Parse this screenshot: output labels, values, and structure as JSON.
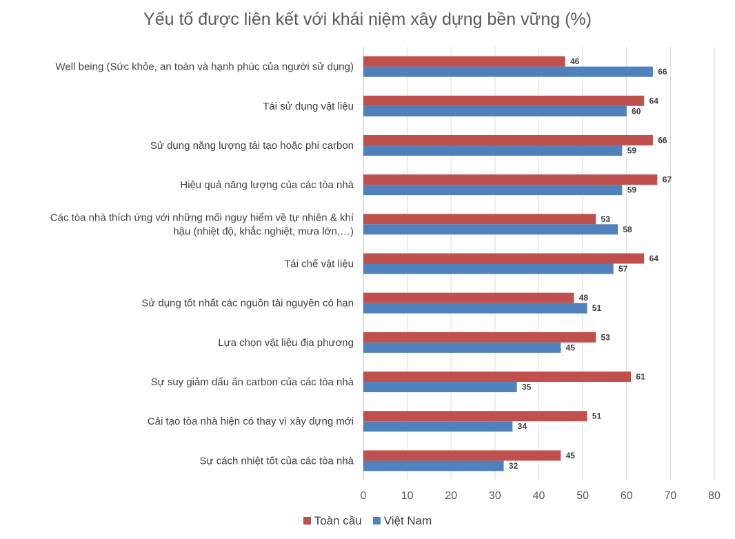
{
  "chart_data": {
    "type": "bar",
    "orientation": "horizontal",
    "title": "Yếu tố được liên kết với khái niệm xây dựng bền vững (%)",
    "categories": [
      [
        "Well being (Sức khỏe, an toàn và hạnh phúc của người sử dụng)"
      ],
      [
        "Tái sử dụng vật liệu"
      ],
      [
        "Sử dụng năng lượng tái tạo hoặc phi carbon"
      ],
      [
        "Hiệu quả năng lượng của các tòa nhà"
      ],
      [
        "Các tòa nhà thích ứng với những mối nguy hiểm về tự nhiên & khí",
        "hậu (nhiệt độ, khắc nghiệt, mưa lớn,…)"
      ],
      [
        "Tái chế vật liệu"
      ],
      [
        "Sử dụng tốt nhất các nguồn tài nguyên có hạn"
      ],
      [
        "Lựa chọn vật liệu địa phương"
      ],
      [
        "Sự suy giảm dấu ấn carbon của các tòa nhà"
      ],
      [
        "Cải tạo tòa nhà hiện có thay vì xây dựng mới"
      ],
      [
        "Sự cách nhiệt tốt của các tòa nhà"
      ]
    ],
    "series": [
      {
        "name": "Toàn cầu",
        "color": "#c0504d",
        "values": [
          46,
          64,
          66,
          67,
          53,
          64,
          48,
          53,
          61,
          51,
          45
        ]
      },
      {
        "name": "Việt Nam",
        "color": "#4f81bd",
        "values": [
          66,
          60,
          59,
          59,
          58,
          57,
          51,
          45,
          35,
          34,
          32
        ]
      }
    ],
    "xlim": [
      0,
      80
    ],
    "xticks": [
      "0",
      "10",
      "20",
      "30",
      "40",
      "50",
      "60",
      "70",
      "80"
    ],
    "grid": true,
    "legend_position": "bottom"
  }
}
